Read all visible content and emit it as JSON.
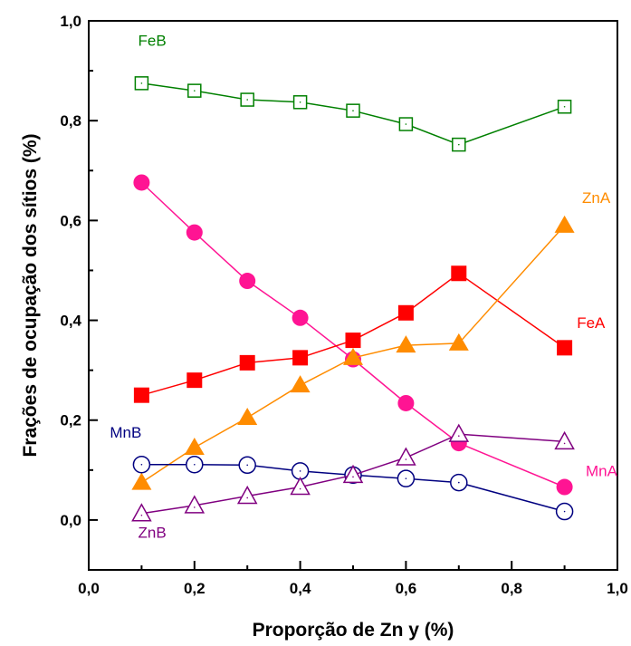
{
  "chart_data": {
    "type": "line",
    "title": "",
    "xlabel": "Proporção de Zn y (%)",
    "ylabel": "Frações de ocupação dos sítios (%)",
    "xlim": [
      0.0,
      1.0
    ],
    "ylim": [
      -0.1,
      1.0
    ],
    "x_ticks": [
      "0,0",
      "0,2",
      "0,4",
      "0,6",
      "0,8",
      "1,0"
    ],
    "y_ticks": [
      "0,0",
      "0,2",
      "0,4",
      "0,6",
      "0,8",
      "1,0"
    ],
    "grid": false,
    "series": [
      {
        "name": "FeB",
        "color": "#008000",
        "marker": "open-square",
        "x": [
          0.1,
          0.2,
          0.3,
          0.4,
          0.5,
          0.6,
          0.7,
          0.9
        ],
        "y": [
          0.875,
          0.86,
          0.842,
          0.837,
          0.82,
          0.793,
          0.752,
          0.828
        ]
      },
      {
        "name": "MnA",
        "color": "#ff1493",
        "marker": "filled-circle",
        "x": [
          0.1,
          0.2,
          0.3,
          0.4,
          0.5,
          0.6,
          0.7,
          0.9
        ],
        "y": [
          0.676,
          0.576,
          0.479,
          0.405,
          0.322,
          0.234,
          0.154,
          0.066
        ]
      },
      {
        "name": "FeA",
        "color": "#ff0000",
        "marker": "filled-square",
        "x": [
          0.1,
          0.2,
          0.3,
          0.4,
          0.5,
          0.6,
          0.7,
          0.9
        ],
        "y": [
          0.25,
          0.28,
          0.315,
          0.325,
          0.36,
          0.415,
          0.494,
          0.345
        ]
      },
      {
        "name": "ZnA",
        "color": "#ff8c00",
        "marker": "filled-triangle",
        "x": [
          0.1,
          0.2,
          0.3,
          0.4,
          0.5,
          0.6,
          0.7,
          0.9
        ],
        "y": [
          0.075,
          0.145,
          0.205,
          0.27,
          0.325,
          0.35,
          0.354,
          0.59
        ]
      },
      {
        "name": "MnB",
        "color": "#000080",
        "marker": "open-circle",
        "x": [
          0.1,
          0.2,
          0.3,
          0.4,
          0.5,
          0.6,
          0.7,
          0.9
        ],
        "y": [
          0.111,
          0.111,
          0.11,
          0.098,
          0.09,
          0.083,
          0.075,
          0.017
        ]
      },
      {
        "name": "ZnB",
        "color": "#800080",
        "marker": "open-triangle",
        "x": [
          0.1,
          0.2,
          0.3,
          0.4,
          0.5,
          0.6,
          0.7,
          0.9
        ],
        "y": [
          0.013,
          0.029,
          0.048,
          0.066,
          0.09,
          0.125,
          0.172,
          0.157
        ]
      }
    ]
  }
}
